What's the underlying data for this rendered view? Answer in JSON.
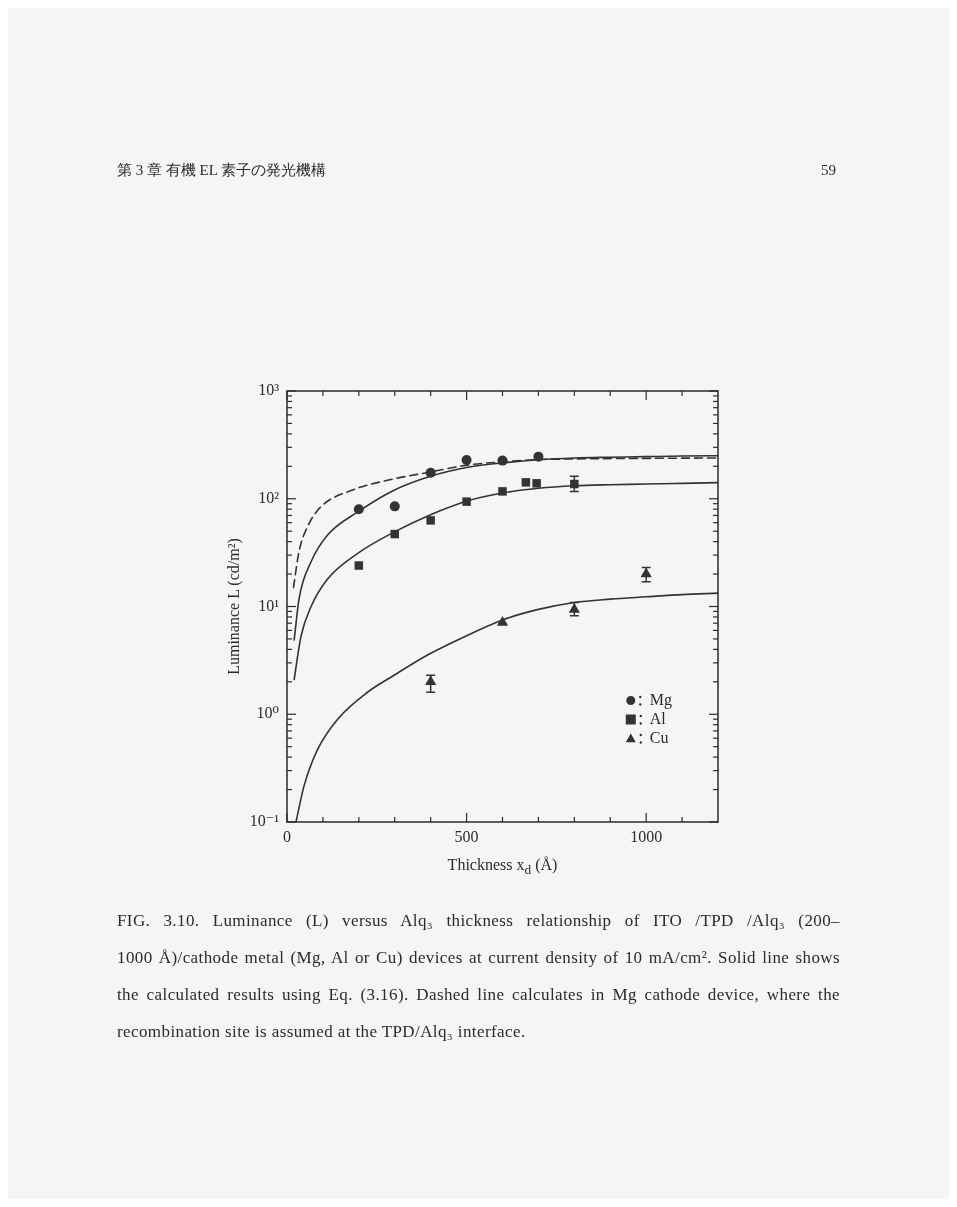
{
  "chart_data": {
    "type": "scatter",
    "xlabel": "Thickness x$_{d}$ (Å)",
    "ylabel": "Luminance L (cd/m²)",
    "xlim": [
      0,
      1200
    ],
    "xticks": [
      0,
      {
        "value": 100,
        "label": null
      },
      {
        "value": 200,
        "label": null
      },
      {
        "value": 300,
        "label": null
      },
      {
        "value": 400,
        "label": null
      },
      500,
      {
        "value": 600,
        "label": null
      },
      {
        "value": 700,
        "label": null
      },
      {
        "value": 800,
        "label": null
      },
      {
        "value": 900,
        "label": null
      },
      1000,
      {
        "value": 1100,
        "label": null
      }
    ],
    "ylim": [
      0.1,
      1000
    ],
    "log": "y",
    "yticks": [
      {
        "value": 0.1,
        "label": "10⁻¹"
      },
      {
        "value": 0.2,
        "label": null
      },
      {
        "value": 0.3,
        "label": null
      },
      {
        "value": 0.4,
        "label": null
      },
      {
        "value": 0.5,
        "label": null
      },
      {
        "value": 0.6,
        "label": null
      },
      {
        "value": 0.7,
        "label": null
      },
      {
        "value": 0.8,
        "label": null
      },
      {
        "value": 0.9,
        "label": null
      },
      {
        "value": 1,
        "label": "10⁰"
      },
      {
        "value": 2,
        "label": null
      },
      {
        "value": 3,
        "label": null
      },
      {
        "value": 4,
        "label": null
      },
      {
        "value": 5,
        "label": null
      },
      {
        "value": 6,
        "label": null
      },
      {
        "value": 7,
        "label": null
      },
      {
        "value": 8,
        "label": null
      },
      {
        "value": 9,
        "label": null
      },
      {
        "value": 10,
        "label": "10¹"
      },
      {
        "value": 20,
        "label": null
      },
      {
        "value": 30,
        "label": null
      },
      {
        "value": 40,
        "label": null
      },
      {
        "value": 50,
        "label": null
      },
      {
        "value": 60,
        "label": null
      },
      {
        "value": 70,
        "label": null
      },
      {
        "value": 80,
        "label": null
      },
      {
        "value": 90,
        "label": null
      },
      {
        "value": 100,
        "label": "10²"
      },
      {
        "value": 200,
        "label": null
      },
      {
        "value": 300,
        "label": null
      },
      {
        "value": 400,
        "label": null
      },
      {
        "value": 500,
        "label": null
      },
      {
        "value": 600,
        "label": null
      },
      {
        "value": 700,
        "label": null
      },
      {
        "value": 800,
        "label": null
      },
      {
        "value": 900,
        "label": null
      },
      {
        "value": 1000,
        "label": "10³"
      }
    ],
    "grid": false,
    "legend": "bottom right",
    "series": [
      {
        "name": "Mg",
        "type": "scatter",
        "marker": "circle",
        "color": "#333333",
        "x": [
          200,
          300,
          400,
          500,
          600,
          700
        ],
        "values": [
          80,
          85,
          174,
          229,
          226,
          246
        ]
      },
      {
        "name": "Al",
        "type": "scatter",
        "marker": "square",
        "color": "#333333",
        "x": [
          200,
          300,
          400,
          500,
          600,
          665,
          695,
          800
        ],
        "values": [
          24,
          47,
          63,
          94,
          117,
          142,
          139,
          137
        ],
        "errors": [
          null,
          null,
          null,
          null,
          null,
          null,
          null,
          [
            117,
            162
          ]
        ]
      },
      {
        "name": "Cu",
        "type": "scatter",
        "marker": "triangle",
        "color": "#333333",
        "x": [
          400,
          600,
          800,
          1000
        ],
        "values": [
          2.0,
          7.1,
          9.4,
          20
        ],
        "errors": [
          [
            1.6,
            2.3
          ],
          null,
          [
            8.2,
            10.9
          ],
          [
            17,
            23
          ]
        ]
      },
      {
        "type": "line",
        "marker": "none",
        "line_style": "solid",
        "color": "#333333",
        "x": [
          20,
          34,
          67,
          113,
          196,
          298,
          395,
          500,
          600,
          700,
          800,
          900,
          1000,
          1100,
          1200
        ],
        "values": [
          4.9,
          12,
          26,
          46,
          75,
          120,
          160,
          195,
          215,
          230,
          239,
          243,
          246,
          249,
          251
        ]
      },
      {
        "type": "line",
        "marker": "none",
        "line_style": "dashed",
        "color": "#333333",
        "x": [
          18,
          34,
          57,
          94,
          178,
          298,
          395,
          500,
          600,
          700,
          800,
          900,
          1000,
          1100,
          1200
        ],
        "values": [
          15,
          33,
          55,
          84,
          119,
          153,
          176,
          205,
          220,
          231,
          234,
          236,
          237,
          238,
          239
        ]
      },
      {
        "type": "line",
        "marker": "none",
        "line_style": "solid",
        "color": "#333333",
        "x": [
          20,
          39,
          67,
          113,
          196,
          298,
          395,
          500,
          600,
          700,
          800,
          900,
          1000,
          1100,
          1200
        ],
        "values": [
          2.1,
          5.3,
          10,
          18,
          31,
          49,
          70,
          95,
          113,
          125,
          132,
          135,
          137,
          139,
          141
        ]
      },
      {
        "type": "line",
        "marker": "none",
        "line_style": "solid",
        "color": "#333333",
        "x": [
          25,
          48,
          85,
          141,
          224,
          298,
          395,
          481,
          600,
          700,
          800,
          900,
          1000,
          1100,
          1200
        ],
        "values": [
          0.1,
          0.22,
          0.47,
          0.9,
          1.6,
          2.3,
          3.6,
          5.0,
          7.5,
          9.4,
          10.9,
          11.7,
          12.3,
          12.9,
          13.3
        ]
      }
    ],
    "annotations": [
      "第 3 章 有機 EL 素子の発光機構",
      "59",
      "FIG. 3.10. Luminance (L) versus Alq₃ thickness relationship of ITO /TPD /Alq₃ (200–1000 Å)/cathode metal (Mg, Al or Cu) devices at current density of 10 mA/cm². Solid line shows the calculated results using Eq. (3.16). Dashed line calculates in Mg cathode device, where the recombination site is assumed at the TPD/Alq₃ interface."
    ]
  }
}
